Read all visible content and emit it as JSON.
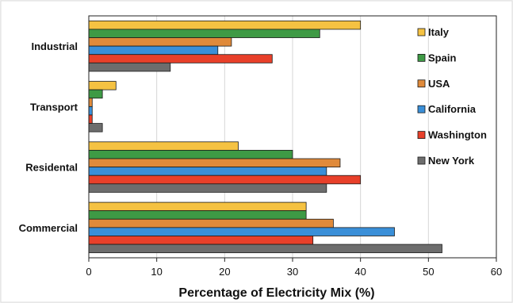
{
  "chart_data": {
    "type": "bar",
    "orientation": "horizontal",
    "title": "",
    "xlabel": "Percentage of Electricity Mix (%)",
    "ylabel": "",
    "xlim": [
      0,
      60
    ],
    "xticks": [
      0,
      10,
      20,
      30,
      40,
      50,
      60
    ],
    "grid": "vertical",
    "legend_position": "right",
    "categories": [
      "Industrial",
      "Transport",
      "Residental",
      "Commercial"
    ],
    "series": [
      {
        "name": "Italy",
        "color": "#f5c242",
        "values": [
          40,
          4,
          22,
          32
        ]
      },
      {
        "name": "Spain",
        "color": "#3e9a45",
        "values": [
          34,
          2,
          30,
          32
        ]
      },
      {
        "name": "USA",
        "color": "#e08a3a",
        "values": [
          21,
          0.5,
          37,
          36
        ]
      },
      {
        "name": "California",
        "color": "#3a8fd8",
        "values": [
          19,
          0.5,
          35,
          45
        ]
      },
      {
        "name": "Washington",
        "color": "#e8402a",
        "values": [
          27,
          0.5,
          40,
          33
        ]
      },
      {
        "name": "New York",
        "color": "#6d6d6d",
        "values": [
          12,
          2,
          35,
          52
        ]
      }
    ]
  }
}
